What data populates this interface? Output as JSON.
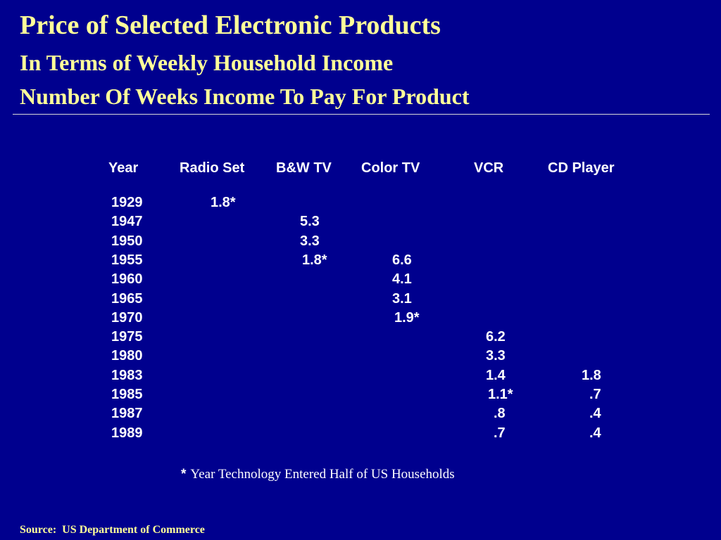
{
  "title": "Price of Selected Electronic Products",
  "subtitle1": "In Terms of Weekly Household Income",
  "subtitle2": "Number Of Weeks Income To Pay For Product",
  "footnote_marker": "*",
  "footnote_text": "Year Technology Entered Half of US Households",
  "source": "Source:  US Department of Commerce",
  "colors": {
    "background": "#00008e",
    "title": "#ffff99",
    "text": "#ffffff"
  },
  "chart_data": {
    "type": "table",
    "columns": [
      "Year",
      "Radio Set",
      "B&W TV",
      "Color TV",
      "VCR",
      "CD Player"
    ],
    "rows": [
      [
        "1929",
        "1.8*",
        "",
        "",
        "",
        ""
      ],
      [
        "1947",
        "",
        "5.3",
        "",
        "",
        ""
      ],
      [
        "1950",
        "",
        "3.3",
        "",
        "",
        ""
      ],
      [
        "1955",
        "",
        "1.8*",
        "6.6",
        "",
        ""
      ],
      [
        "1960",
        "",
        "",
        "4.1",
        "",
        ""
      ],
      [
        "1965",
        "",
        "",
        "3.1",
        "",
        ""
      ],
      [
        "1970",
        "",
        "",
        "1.9*",
        "",
        ""
      ],
      [
        "1975",
        "",
        "",
        "",
        "6.2",
        ""
      ],
      [
        "1980",
        "",
        "",
        "",
        "3.3",
        ""
      ],
      [
        "1983",
        "",
        "",
        "",
        "1.4",
        "1.8"
      ],
      [
        "1985",
        "",
        "",
        "",
        "1.1*",
        ".7"
      ],
      [
        "1987",
        "",
        "",
        "",
        ".8",
        ".4"
      ],
      [
        "1989",
        "",
        "",
        "",
        ".7",
        ".4"
      ]
    ]
  }
}
